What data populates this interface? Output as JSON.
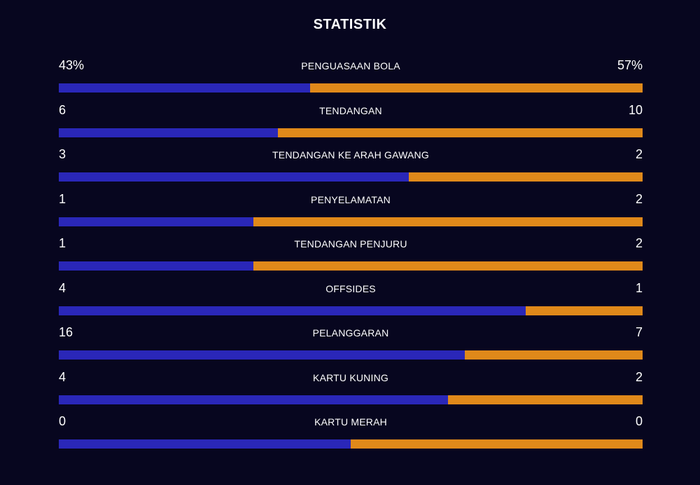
{
  "title": "STATISTIK",
  "colors": {
    "background": "#07061f",
    "home": "#2a27b8",
    "away": "#e0891a",
    "text": "#ffffff"
  },
  "stats": [
    {
      "label": "PENGUASAAN BOLA",
      "home": "43%",
      "away": "57%",
      "home_value": 43,
      "away_value": 57
    },
    {
      "label": "TENDANGAN",
      "home": "6",
      "away": "10",
      "home_value": 6,
      "away_value": 10
    },
    {
      "label": "TENDANGAN KE ARAH GAWANG",
      "home": "3",
      "away": "2",
      "home_value": 3,
      "away_value": 2
    },
    {
      "label": "PENYELAMATAN",
      "home": "1",
      "away": "2",
      "home_value": 1,
      "away_value": 2
    },
    {
      "label": "TENDANGAN PENJURU",
      "home": "1",
      "away": "2",
      "home_value": 1,
      "away_value": 2
    },
    {
      "label": "OFFSIDES",
      "home": "4",
      "away": "1",
      "home_value": 4,
      "away_value": 1
    },
    {
      "label": "PELANGGARAN",
      "home": "16",
      "away": "7",
      "home_value": 16,
      "away_value": 7
    },
    {
      "label": "KARTU KUNING",
      "home": "4",
      "away": "2",
      "home_value": 4,
      "away_value": 2
    },
    {
      "label": "KARTU MERAH",
      "home": "0",
      "away": "0",
      "home_value": 0,
      "away_value": 0
    }
  ]
}
